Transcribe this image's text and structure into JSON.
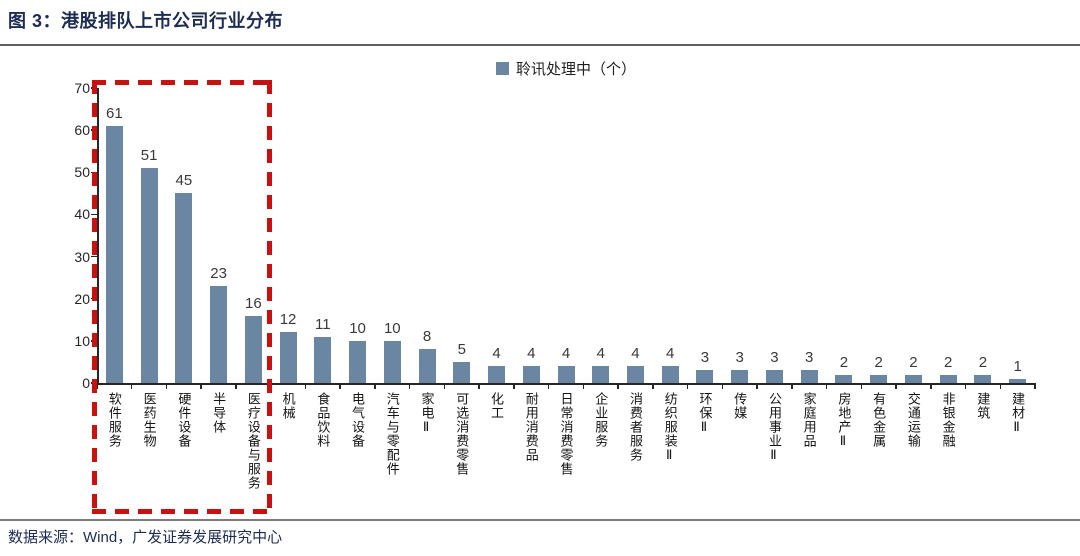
{
  "title": "图 3：港股排队上市公司行业分布",
  "legend": {
    "label": "聆讯处理中（个）"
  },
  "footer": {
    "source": "数据来源：Wind，广发证券发展研究中心"
  },
  "chart_data": {
    "type": "bar",
    "title": "港股排队上市公司行业分布",
    "legend_entries": [
      "聆讯处理中（个）"
    ],
    "legend_position": "top-center",
    "grid": false,
    "categories": [
      "软件服务",
      "医药生物",
      "硬件设备",
      "半导体",
      "医疗设备与服务",
      "机械",
      "食品饮料",
      "电气设备",
      "汽车与零配件",
      "家电Ⅱ",
      "可选消费零售",
      "化工",
      "耐用消费品",
      "日常消费零售",
      "企业服务",
      "消费者服务",
      "纺织服装Ⅱ",
      "环保Ⅱ",
      "传媒",
      "公用事业Ⅱ",
      "家庭用品",
      "房地产Ⅱ",
      "有色金属",
      "交通运输",
      "非银金融",
      "建筑",
      "建材Ⅱ"
    ],
    "values": [
      61,
      51,
      45,
      23,
      16,
      12,
      11,
      10,
      10,
      8,
      5,
      4,
      4,
      4,
      4,
      4,
      4,
      3,
      3,
      3,
      3,
      2,
      2,
      2,
      2,
      2,
      1
    ],
    "xlabel": "",
    "ylabel": "",
    "ylim": [
      0,
      70
    ],
    "yticks": [
      0,
      10,
      20,
      30,
      40,
      50,
      60,
      70
    ],
    "bar_color": "#6A86A2",
    "highlight": {
      "style": "dashed-box",
      "color": "#C81212",
      "start_index": 0,
      "end_index": 4,
      "categories_covered": [
        "软件服务",
        "医药生物",
        "硬件设备",
        "半导体",
        "医疗设备与服务"
      ]
    }
  }
}
